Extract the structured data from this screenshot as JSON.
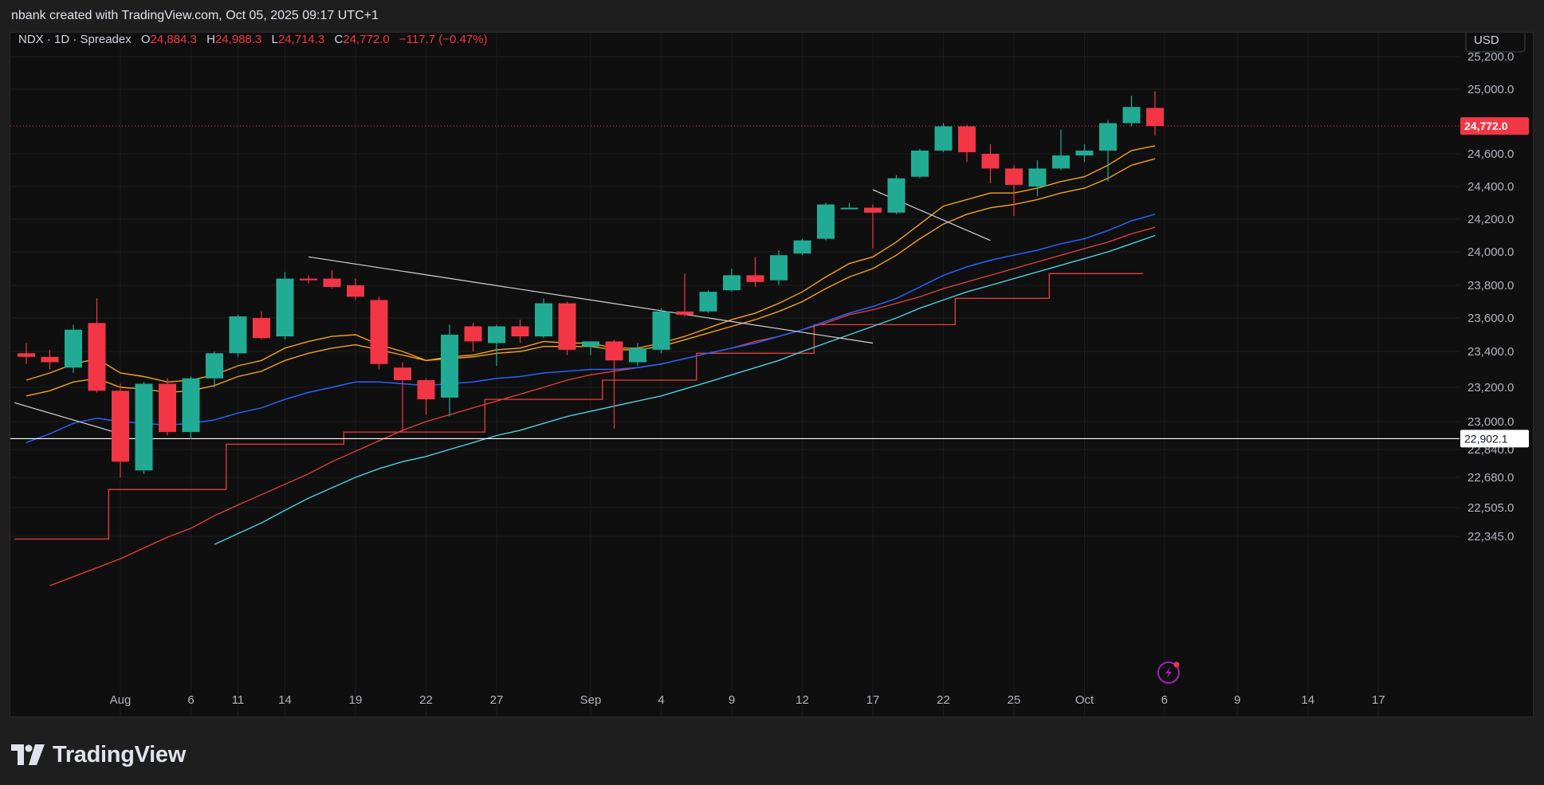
{
  "header": {
    "credit": "nbank created with TradingView.com, Oct 05, 2025 09:17 UTC+1"
  },
  "footer": {
    "brand": "TradingView"
  },
  "colors": {
    "up": "#22ab94",
    "down": "#f23645",
    "ema_fast": "#f7a21b",
    "ema_mid": "#f7a21b",
    "ema_blue": "#2962ff",
    "ema_cyan": "#4dd0e1",
    "red_line": "#e8413c",
    "trendline": "#d1d4dc"
  },
  "chart_data": {
    "type": "candlestick",
    "legend": {
      "symbol": "NDX · 1D · Spreadex",
      "open_label": "O",
      "open": "24,884.3",
      "high_label": "H",
      "high": "24,988.3",
      "low_label": "L",
      "low": "24,714.3",
      "close_label": "C",
      "close": "24,772.0",
      "change": "−117.7 (−0.47%)"
    },
    "currency": "USD",
    "y_ticks": [
      "25,200.0",
      "25,000.0",
      "24,600.0",
      "24,400.0",
      "24,200.0",
      "24,000.0",
      "23,800.0",
      "23,600.0",
      "23,400.0",
      "23,200.0",
      "23,000.0",
      "22,840.0",
      "22,680.0",
      "22,505.0",
      "22,345.0"
    ],
    "x_ticks": [
      "Aug",
      "6",
      "11",
      "14",
      "19",
      "22",
      "27",
      "Sep",
      "4",
      "9",
      "12",
      "17",
      "22",
      "25",
      "Oct",
      "6",
      "9",
      "14",
      "17"
    ],
    "price_labels": {
      "last": "24,772.0",
      "level": "22,902.1"
    },
    "candles": [
      {
        "o": 23390,
        "h": 23450,
        "l": 23330,
        "c": 23370
      },
      {
        "o": 23370,
        "h": 23410,
        "l": 23300,
        "c": 23340
      },
      {
        "o": 23310,
        "h": 23560,
        "l": 23280,
        "c": 23530
      },
      {
        "o": 23570,
        "h": 23720,
        "l": 23170,
        "c": 23180
      },
      {
        "o": 23180,
        "h": 23220,
        "l": 22680,
        "c": 22770
      },
      {
        "o": 22720,
        "h": 23230,
        "l": 22700,
        "c": 23220
      },
      {
        "o": 23220,
        "h": 23250,
        "l": 22920,
        "c": 22940
      },
      {
        "o": 22940,
        "h": 23260,
        "l": 22900,
        "c": 23250
      },
      {
        "o": 23250,
        "h": 23400,
        "l": 23200,
        "c": 23390
      },
      {
        "o": 23390,
        "h": 23620,
        "l": 23370,
        "c": 23610
      },
      {
        "o": 23600,
        "h": 23640,
        "l": 23470,
        "c": 23480
      },
      {
        "o": 23490,
        "h": 23880,
        "l": 23470,
        "c": 23840
      },
      {
        "o": 23840,
        "h": 23860,
        "l": 23810,
        "c": 23830
      },
      {
        "o": 23840,
        "h": 23890,
        "l": 23780,
        "c": 23790
      },
      {
        "o": 23800,
        "h": 23840,
        "l": 23710,
        "c": 23730
      },
      {
        "o": 23710,
        "h": 23730,
        "l": 23300,
        "c": 23330
      },
      {
        "o": 23310,
        "h": 23340,
        "l": 22940,
        "c": 23240
      },
      {
        "o": 23240,
        "h": 23250,
        "l": 23040,
        "c": 23130
      },
      {
        "o": 23140,
        "h": 23560,
        "l": 23030,
        "c": 23500
      },
      {
        "o": 23550,
        "h": 23570,
        "l": 23400,
        "c": 23460
      },
      {
        "o": 23450,
        "h": 23560,
        "l": 23320,
        "c": 23550
      },
      {
        "o": 23550,
        "h": 23590,
        "l": 23450,
        "c": 23490
      },
      {
        "o": 23490,
        "h": 23720,
        "l": 23480,
        "c": 23690
      },
      {
        "o": 23690,
        "h": 23700,
        "l": 23380,
        "c": 23410
      },
      {
        "o": 23430,
        "h": 23460,
        "l": 23380,
        "c": 23460
      },
      {
        "o": 23460,
        "h": 23470,
        "l": 22960,
        "c": 23350
      },
      {
        "o": 23340,
        "h": 23450,
        "l": 23320,
        "c": 23420
      },
      {
        "o": 23410,
        "h": 23660,
        "l": 23390,
        "c": 23640
      },
      {
        "o": 23640,
        "h": 23870,
        "l": 23610,
        "c": 23620
      },
      {
        "o": 23640,
        "h": 23770,
        "l": 23630,
        "c": 23760
      },
      {
        "o": 23770,
        "h": 23900,
        "l": 23760,
        "c": 23860
      },
      {
        "o": 23860,
        "h": 23970,
        "l": 23790,
        "c": 23820
      },
      {
        "o": 23830,
        "h": 24010,
        "l": 23800,
        "c": 23980
      },
      {
        "o": 23990,
        "h": 24080,
        "l": 23980,
        "c": 24070
      },
      {
        "o": 24080,
        "h": 24300,
        "l": 24070,
        "c": 24290
      },
      {
        "o": 24270,
        "h": 24300,
        "l": 24270,
        "c": 24270
      },
      {
        "o": 24270,
        "h": 24290,
        "l": 24020,
        "c": 24240
      },
      {
        "o": 24240,
        "h": 24470,
        "l": 24230,
        "c": 24450
      },
      {
        "o": 24460,
        "h": 24630,
        "l": 24450,
        "c": 24620
      },
      {
        "o": 24620,
        "h": 24790,
        "l": 24610,
        "c": 24770
      },
      {
        "o": 24770,
        "h": 24780,
        "l": 24550,
        "c": 24610
      },
      {
        "o": 24600,
        "h": 24660,
        "l": 24420,
        "c": 24510
      },
      {
        "o": 24510,
        "h": 24530,
        "l": 24220,
        "c": 24410
      },
      {
        "o": 24400,
        "h": 24560,
        "l": 24340,
        "c": 24510
      },
      {
        "o": 24510,
        "h": 24750,
        "l": 24500,
        "c": 24590
      },
      {
        "o": 24590,
        "h": 24660,
        "l": 24550,
        "c": 24620
      },
      {
        "o": 24620,
        "h": 24810,
        "l": 24430,
        "c": 24790
      },
      {
        "o": 24790,
        "h": 24960,
        "l": 24770,
        "c": 24890
      },
      {
        "o": 24884.3,
        "h": 24988.3,
        "l": 24714.3,
        "c": 24772.0
      }
    ],
    "ema9": [
      23240,
      23280,
      23330,
      23360,
      23280,
      23260,
      23230,
      23240,
      23270,
      23320,
      23350,
      23420,
      23460,
      23490,
      23500,
      23440,
      23400,
      23350,
      23370,
      23380,
      23410,
      23420,
      23460,
      23450,
      23450,
      23420,
      23420,
      23450,
      23490,
      23540,
      23590,
      23630,
      23690,
      23760,
      23850,
      23930,
      23970,
      24060,
      24170,
      24280,
      24320,
      24360,
      24360,
      24390,
      24430,
      24460,
      24530,
      24620,
      24650
    ],
    "ema13": [
      23150,
      23180,
      23230,
      23250,
      23200,
      23190,
      23170,
      23180,
      23210,
      23260,
      23290,
      23350,
      23390,
      23420,
      23440,
      23410,
      23380,
      23350,
      23360,
      23370,
      23390,
      23400,
      23430,
      23430,
      23430,
      23410,
      23410,
      23430,
      23470,
      23510,
      23550,
      23590,
      23640,
      23700,
      23780,
      23850,
      23900,
      23980,
      24080,
      24170,
      24230,
      24270,
      24290,
      24320,
      24360,
      24390,
      24450,
      24530,
      24570
    ],
    "ema_blue": [
      22880,
      22930,
      22990,
      23020,
      23000,
      22990,
      22980,
      22990,
      23010,
      23050,
      23080,
      23130,
      23170,
      23200,
      23230,
      23230,
      23220,
      23210,
      23220,
      23230,
      23250,
      23260,
      23280,
      23290,
      23300,
      23300,
      23310,
      23330,
      23360,
      23390,
      23420,
      23450,
      23490,
      23530,
      23580,
      23630,
      23670,
      23720,
      23790,
      23860,
      23910,
      23950,
      23980,
      24010,
      24050,
      24080,
      24130,
      24190,
      24230
    ],
    "red_line": [
      null,
      22070,
      22120,
      22170,
      22220,
      22280,
      22340,
      22390,
      22460,
      22520,
      22580,
      22640,
      22700,
      22770,
      22830,
      22890,
      22950,
      23000,
      23040,
      23080,
      23120,
      23160,
      23200,
      23240,
      23270,
      23290,
      23310,
      23330,
      23360,
      23390,
      23420,
      23460,
      23490,
      23530,
      23570,
      23620,
      23650,
      23690,
      23730,
      23780,
      23820,
      23860,
      23900,
      23940,
      23980,
      24020,
      24060,
      24110,
      24150
    ],
    "red_step": [
      {
        "from": 0,
        "to": 4,
        "v": 22330
      },
      {
        "from": 4,
        "to": 9,
        "v": 22610
      },
      {
        "from": 9,
        "to": 14,
        "v": 22870
      },
      {
        "from": 14,
        "to": 20,
        "v": 22940
      },
      {
        "from": 20,
        "to": 25,
        "v": 23130
      },
      {
        "from": 25,
        "to": 29,
        "v": 23240
      },
      {
        "from": 29,
        "to": 34,
        "v": 23390
      },
      {
        "from": 34,
        "to": 40,
        "v": 23560
      },
      {
        "from": 40,
        "to": 44,
        "v": 23720
      },
      {
        "from": 44,
        "to": 48,
        "v": 23870
      }
    ],
    "ema_cyan": [
      null,
      null,
      null,
      null,
      null,
      null,
      null,
      null,
      22300,
      22360,
      22420,
      22490,
      22560,
      22620,
      22680,
      22730,
      22770,
      22800,
      22840,
      22880,
      22920,
      22950,
      22990,
      23030,
      23060,
      23090,
      23120,
      23150,
      23190,
      23230,
      23270,
      23310,
      23350,
      23400,
      23450,
      23500,
      23550,
      23600,
      23660,
      23710,
      23760,
      23800,
      23840,
      23880,
      23920,
      23960,
      24000,
      24050,
      24100
    ],
    "trendlines": [
      {
        "x1": 12,
        "y1": 23970,
        "x2": 36,
        "y2": 23450
      },
      {
        "x1": -0.5,
        "y1": 23110,
        "x2": 4,
        "y2": 22930
      },
      {
        "x1": 36,
        "y1": 24380,
        "x2": 41,
        "y2": 24070
      }
    ],
    "horizontal_level": 22902.1
  }
}
